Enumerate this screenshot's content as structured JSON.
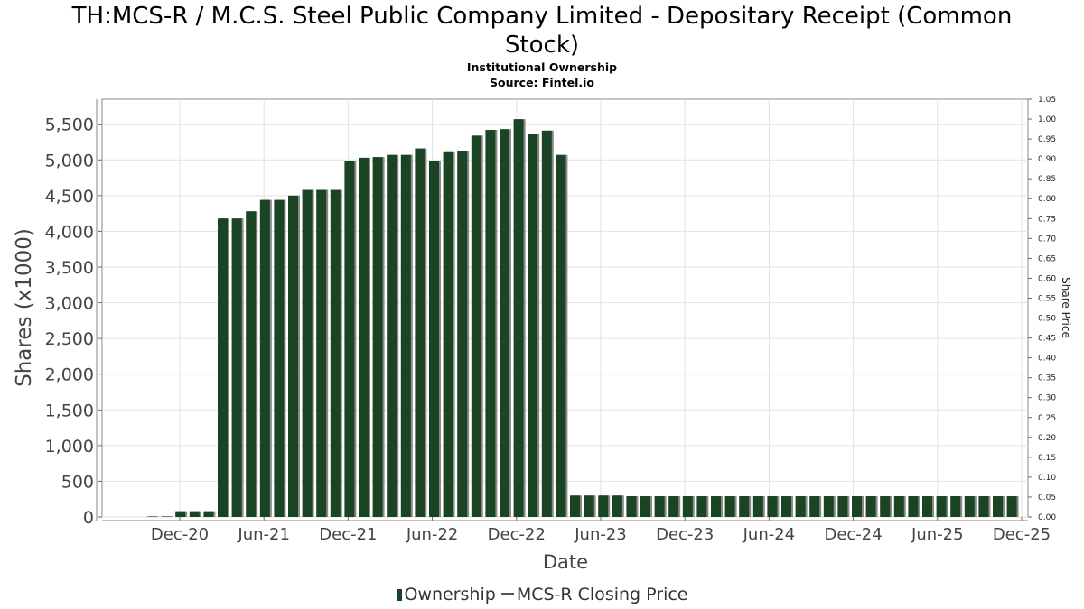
{
  "chart_data": {
    "type": "bar",
    "title_line1": "TH:MCS-R / M.C.S. Steel Public Company Limited - Depositary Receipt (Common",
    "title_line2": "Stock)",
    "subtitle1": "Institutional Ownership",
    "subtitle2": "Source: Fintel.io",
    "xlabel": "Date",
    "ylabel": "Shares (x1000)",
    "y2label": "Share Price",
    "x_tick_labels": [
      "Dec-20",
      "Jun-21",
      "Dec-21",
      "Jun-22",
      "Dec-22",
      "Jun-23",
      "Dec-23",
      "Jun-24",
      "Dec-24",
      "Jun-25",
      "Dec-25"
    ],
    "y_ticks": [
      0,
      500,
      1000,
      1500,
      2000,
      2500,
      3000,
      3500,
      4000,
      4500,
      5000,
      5500
    ],
    "y_tick_labels": [
      "0",
      "500",
      "1,000",
      "1,500",
      "2,000",
      "2,500",
      "3,000",
      "3,500",
      "4,000",
      "4,500",
      "5,000",
      "5,500"
    ],
    "ylim": [
      0,
      5850
    ],
    "y2_tick_labels": [
      "0.00",
      "0.05",
      "0.10",
      "0.15",
      "0.20",
      "0.25",
      "0.30",
      "0.35",
      "0.40",
      "0.45",
      "0.50",
      "0.55",
      "0.60",
      "0.65",
      "0.70",
      "0.75",
      "0.80",
      "0.85",
      "0.90",
      "0.95",
      "1.00",
      "1.05"
    ],
    "y2lim": [
      0,
      1.05
    ],
    "grid": true,
    "legend_position": "bottom-center",
    "series": [
      {
        "name": "Ownership",
        "color": "#1b4424",
        "values": [
          2,
          2,
          80,
          80,
          80,
          4180,
          4180,
          4280,
          4440,
          4440,
          4500,
          4580,
          4580,
          4580,
          4980,
          5030,
          5040,
          5070,
          5070,
          5160,
          4980,
          5120,
          5130,
          5340,
          5420,
          5430,
          5570,
          5360,
          5410,
          5070,
          300,
          300,
          300,
          300,
          290,
          290,
          290,
          290,
          290,
          290,
          290,
          290,
          290,
          290,
          290,
          290,
          290,
          290,
          290,
          290,
          290,
          290,
          290,
          290,
          290,
          290,
          290,
          290,
          290,
          290,
          290,
          290
        ]
      },
      {
        "name": "MCS-R Closing Price",
        "color": "#555555",
        "values": []
      }
    ]
  }
}
